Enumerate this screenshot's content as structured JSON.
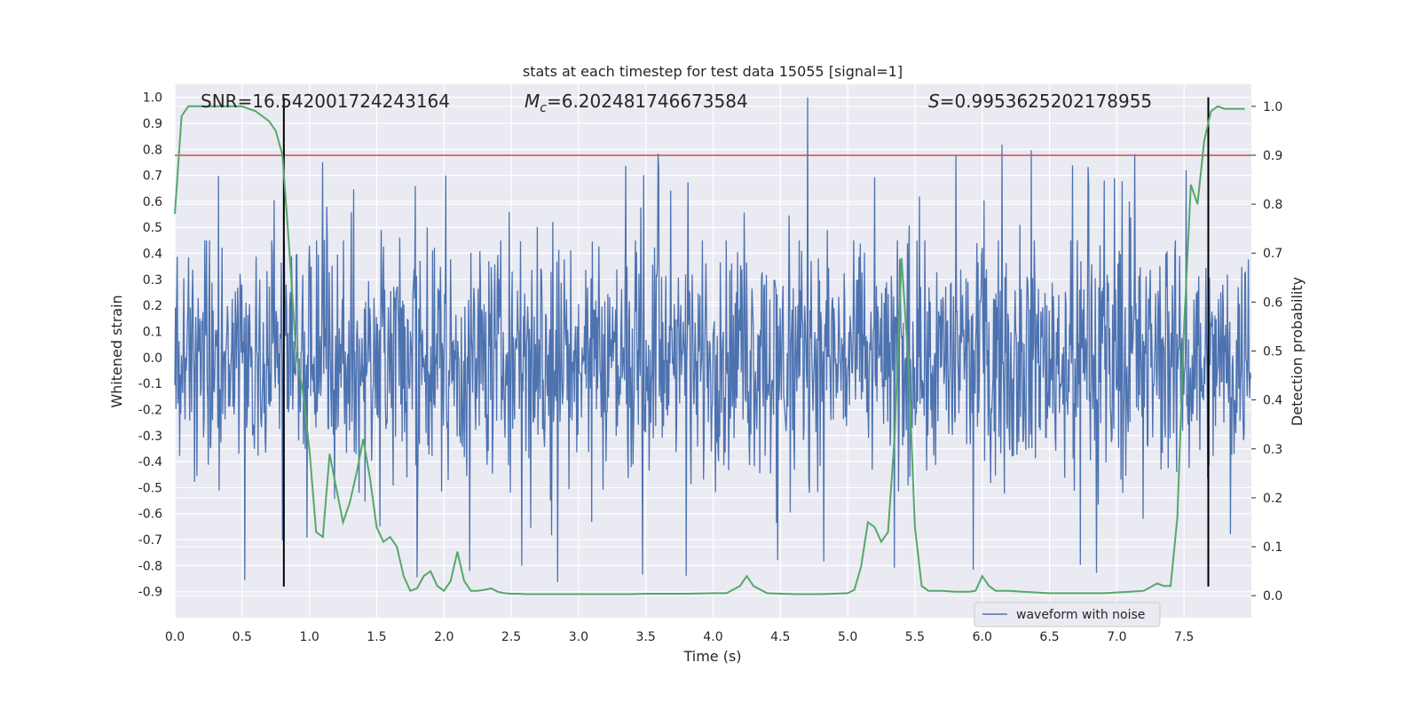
{
  "chart_data": {
    "type": "line",
    "title": "stats at each timestep for test data 15055 [signal=1]",
    "xlabel": "Time (s)",
    "ylabel_left": "Whitened strain",
    "ylabel_right": "Detection probability",
    "xlim": [
      0.0,
      8.0
    ],
    "ylim_left": [
      -1.0,
      1.05
    ],
    "ylim_right": [
      -0.045,
      1.045
    ],
    "x_ticks": [
      "0.0",
      "0.5",
      "1.0",
      "1.5",
      "2.0",
      "2.5",
      "3.0",
      "3.5",
      "4.0",
      "4.5",
      "5.0",
      "5.5",
      "6.0",
      "6.5",
      "7.0",
      "7.5"
    ],
    "y_ticks_left": [
      "1.0",
      "0.9",
      "0.8",
      "0.7",
      "0.6",
      "0.5",
      "0.4",
      "0.3",
      "0.2",
      "0.1",
      "0.0",
      "-0.1",
      "-0.2",
      "-0.3",
      "-0.4",
      "-0.5",
      "-0.6",
      "-0.7",
      "-0.8",
      "-0.9"
    ],
    "y_ticks_right": [
      "1.0",
      "0.9",
      "0.8",
      "0.7",
      "0.6",
      "0.5",
      "0.4",
      "0.3",
      "0.2",
      "0.1",
      "0.0"
    ],
    "grid": true,
    "legend_position": "lower-right",
    "annotations": {
      "snr": "SNR=16.542001724243164",
      "mc_prefix": "M",
      "mc_sub": "c",
      "mc_value": "=6.202481746673584",
      "s_prefix": "S",
      "s_value": "=0.9953625202178955"
    },
    "series": [
      {
        "name": "waveform with noise",
        "axis": "left",
        "color": "#4c72b0",
        "envelope": {
          "typical_upper": 0.25,
          "typical_lower": -0.32,
          "spike_range_upper": [
            0.3,
            0.83
          ],
          "spike_range_lower": [
            -0.35,
            -0.88
          ],
          "global_max": {
            "x": 4.7,
            "y": 1.0
          }
        }
      },
      {
        "axis": "right",
        "color": "#55a868",
        "x": [
          0.0,
          0.05,
          0.1,
          0.2,
          0.3,
          0.4,
          0.5,
          0.6,
          0.7,
          0.75,
          0.8,
          0.85,
          0.9,
          0.95,
          1.0,
          1.05,
          1.1,
          1.15,
          1.2,
          1.25,
          1.3,
          1.35,
          1.4,
          1.45,
          1.5,
          1.55,
          1.6,
          1.65,
          1.7,
          1.75,
          1.8,
          1.85,
          1.9,
          1.95,
          2.0,
          2.05,
          2.1,
          2.15,
          2.2,
          2.25,
          2.3,
          2.35,
          2.4,
          2.45,
          2.5,
          2.55,
          2.6,
          2.7,
          2.8,
          3.0,
          3.2,
          3.4,
          3.5,
          3.6,
          3.8,
          4.0,
          4.1,
          4.2,
          4.25,
          4.3,
          4.4,
          4.6,
          4.8,
          5.0,
          5.05,
          5.1,
          5.15,
          5.2,
          5.25,
          5.3,
          5.35,
          5.4,
          5.45,
          5.5,
          5.55,
          5.6,
          5.7,
          5.8,
          5.9,
          5.95,
          6.0,
          6.05,
          6.1,
          6.2,
          6.3,
          6.5,
          6.7,
          6.9,
          7.1,
          7.2,
          7.3,
          7.35,
          7.4,
          7.45,
          7.5,
          7.55,
          7.6,
          7.65,
          7.7,
          7.75,
          7.8,
          7.85,
          7.9,
          7.95
        ],
        "y": [
          0.78,
          0.98,
          1.0,
          1.0,
          1.0,
          1.0,
          1.0,
          0.99,
          0.97,
          0.95,
          0.9,
          0.71,
          0.5,
          0.42,
          0.3,
          0.13,
          0.12,
          0.29,
          0.22,
          0.15,
          0.19,
          0.25,
          0.32,
          0.24,
          0.14,
          0.11,
          0.12,
          0.1,
          0.04,
          0.01,
          0.015,
          0.04,
          0.05,
          0.02,
          0.01,
          0.03,
          0.09,
          0.03,
          0.01,
          0.01,
          0.012,
          0.015,
          0.008,
          0.005,
          0.004,
          0.004,
          0.003,
          0.003,
          0.003,
          0.003,
          0.003,
          0.003,
          0.004,
          0.004,
          0.004,
          0.005,
          0.005,
          0.02,
          0.04,
          0.02,
          0.005,
          0.003,
          0.003,
          0.005,
          0.012,
          0.06,
          0.15,
          0.14,
          0.11,
          0.13,
          0.33,
          0.69,
          0.48,
          0.14,
          0.02,
          0.01,
          0.01,
          0.008,
          0.008,
          0.01,
          0.04,
          0.02,
          0.01,
          0.01,
          0.008,
          0.005,
          0.005,
          0.005,
          0.008,
          0.01,
          0.025,
          0.02,
          0.02,
          0.16,
          0.55,
          0.84,
          0.8,
          0.93,
          0.99,
          1.0,
          0.995,
          0.995,
          0.995,
          0.995
        ]
      }
    ],
    "reference_lines": {
      "red_threshold_right_axis": 0.9,
      "black_vertical_lines_x": [
        0.81,
        7.68
      ],
      "black_vertical_span_left_axis": [
        -0.88,
        1.0
      ],
      "red_color": "#c44e52",
      "black_color": "#000000"
    },
    "style": {
      "plot_background": "#eaeaf2",
      "grid_color": "#ffffff"
    }
  }
}
